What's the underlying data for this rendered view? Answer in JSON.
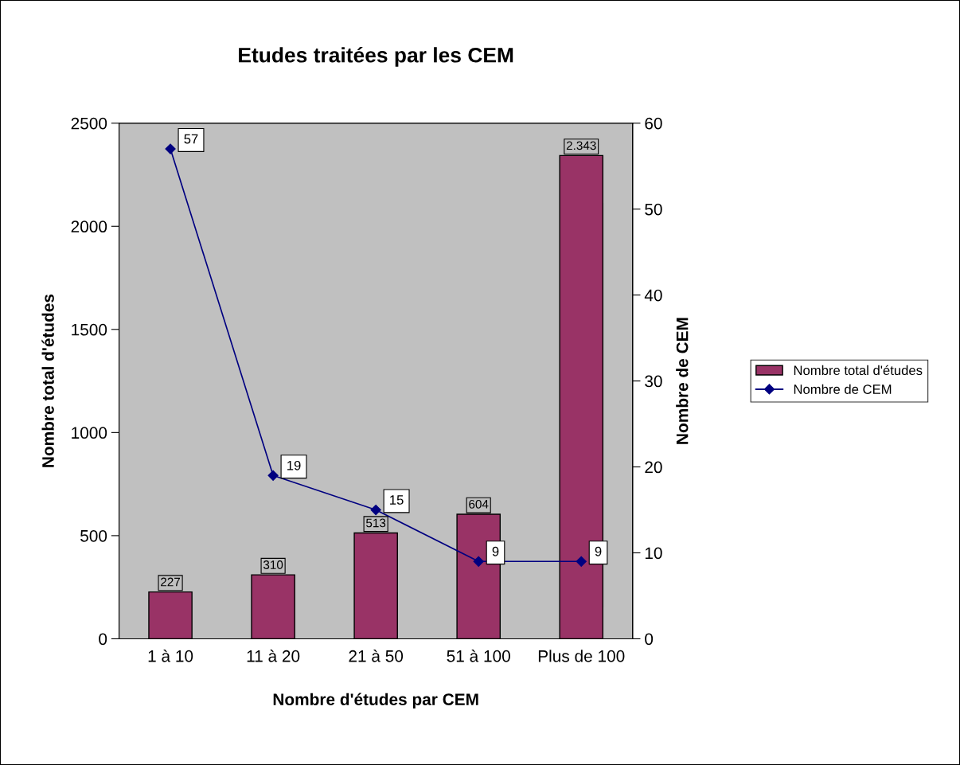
{
  "chart_data": {
    "type": "bar",
    "title": "Etudes traitées par les CEM",
    "categories": [
      "1 à 10",
      "11 à 20",
      "21 à 50",
      "51 à 100",
      "Plus de 100"
    ],
    "xlabel": "Nombre d'études par CEM",
    "ylabel": "Nombre total d'études",
    "y2label": "Nombre de CEM",
    "series": [
      {
        "name": "Nombre total d'études",
        "color": "#993366",
        "values": [
          227,
          310,
          513,
          604,
          2343
        ],
        "value_labels": [
          "227",
          "310",
          "513",
          "604",
          "2.343"
        ]
      },
      {
        "name": "Nombre de CEM",
        "type": "line",
        "axis": "y2",
        "color": "#000080",
        "marker": "diamond",
        "values": [
          57,
          19,
          15,
          9,
          9
        ],
        "value_labels": [
          "57",
          "19",
          "15",
          "9",
          "9"
        ]
      }
    ],
    "ylim": [
      0,
      2500
    ],
    "yticks": [
      0,
      500,
      1000,
      1500,
      2000,
      2500
    ],
    "y2lim": [
      0,
      60
    ],
    "y2ticks": [
      0,
      10,
      20,
      30,
      40,
      50,
      60
    ],
    "grid": false,
    "legend": "right"
  }
}
